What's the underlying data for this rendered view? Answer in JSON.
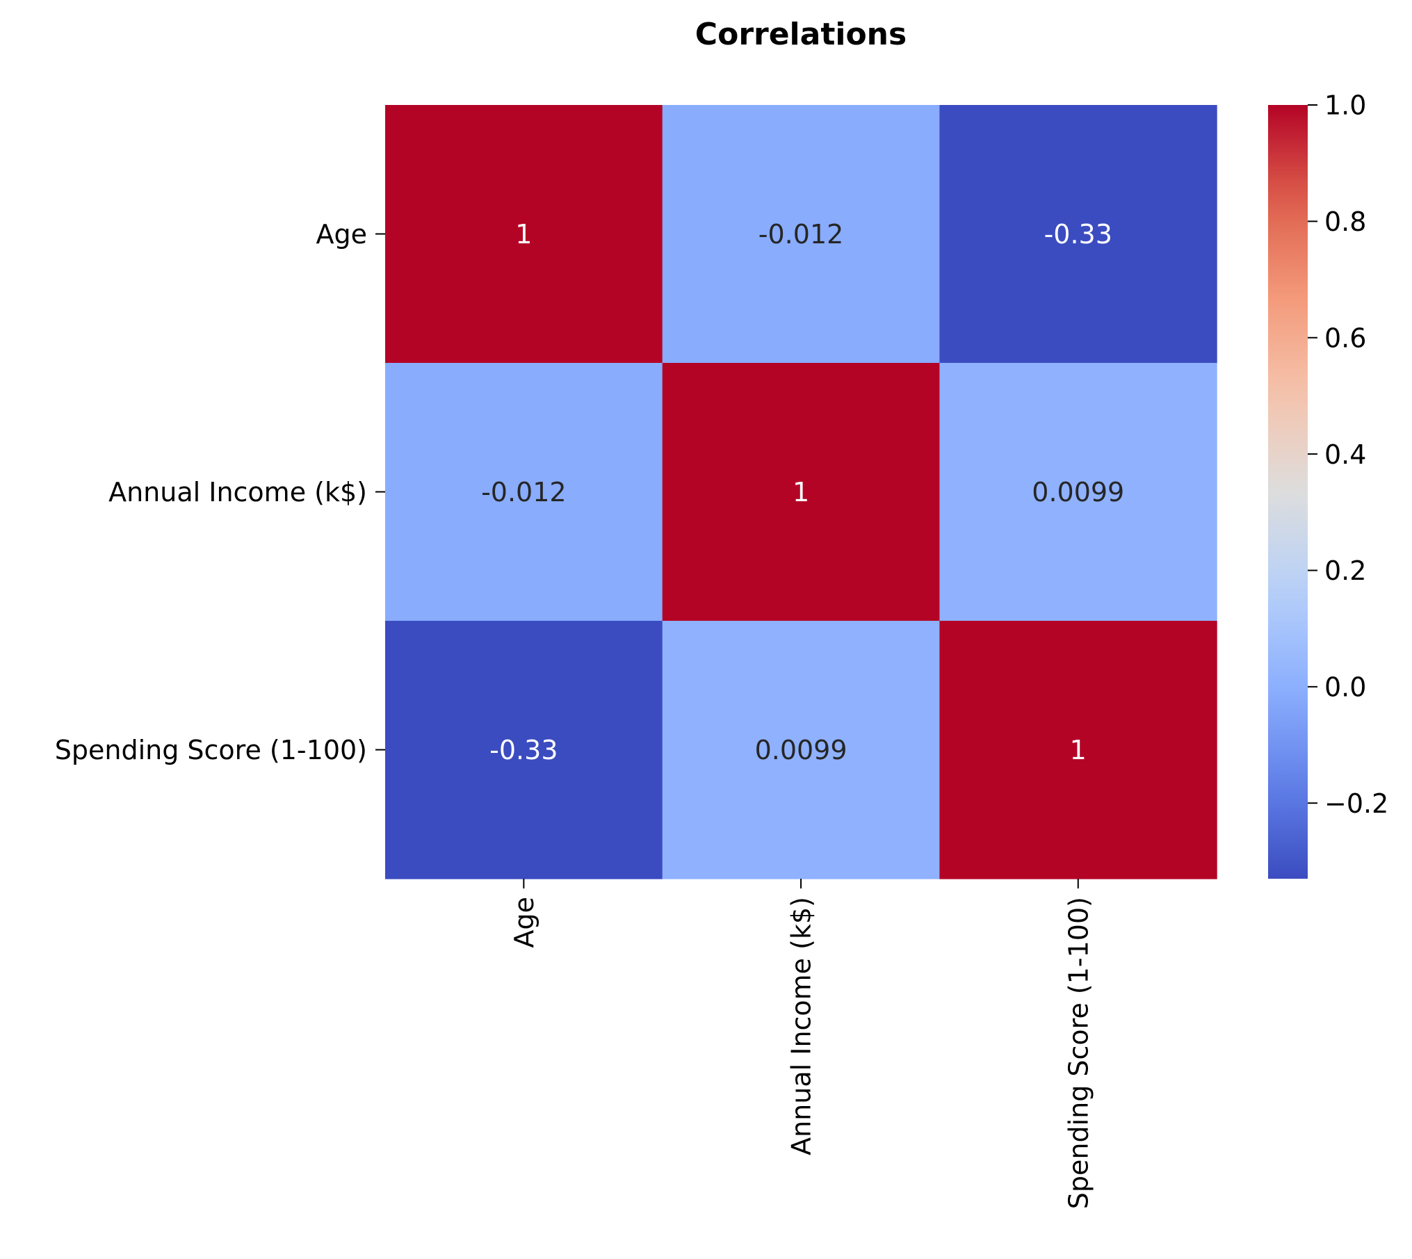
{
  "chart_data": {
    "type": "heatmap",
    "title": "Correlations",
    "row_labels": [
      "Age",
      "Annual Income (k$)",
      "Spending Score (1-100)"
    ],
    "col_labels": [
      "Age",
      "Annual Income (k$)",
      "Spending Score (1-100)"
    ],
    "values": [
      [
        1,
        -0.012,
        -0.33
      ],
      [
        -0.012,
        1,
        0.0099
      ],
      [
        -0.33,
        0.0099,
        1
      ]
    ],
    "cell_labels": [
      [
        "1",
        "-0.012",
        "-0.33"
      ],
      [
        "-0.012",
        "1",
        "0.0099"
      ],
      [
        "-0.33",
        "0.0099",
        "1"
      ]
    ],
    "colormap": "coolwarm",
    "colorbar": {
      "range": [
        -0.33,
        1.0
      ],
      "ticks": [
        -0.2,
        0.0,
        0.2,
        0.4,
        0.6,
        0.8,
        1.0
      ],
      "tick_labels": [
        "−0.2",
        "0.0",
        "0.2",
        "0.4",
        "0.6",
        "0.8",
        "1.0"
      ]
    },
    "grid": false,
    "legend": "colorbar-right"
  }
}
